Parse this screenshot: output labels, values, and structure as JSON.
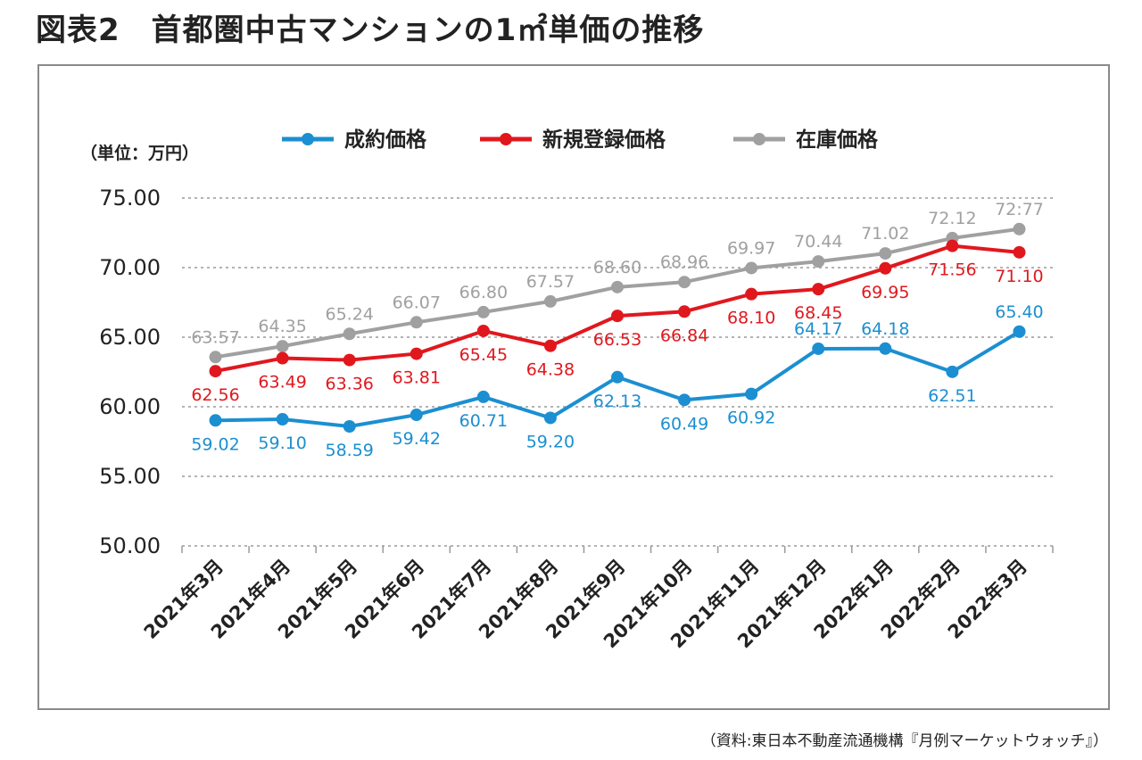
{
  "title": "図表2　首都圏中古マンションの1㎡単価の推移",
  "source": "（資料:東日本不動産流通機構『月例マーケットウォッチ』）",
  "chart_data": {
    "type": "line",
    "title": "図表2　首都圏中古マンションの1㎡単価の推移",
    "unit_label": "（単位：万円）",
    "xlabel": "",
    "ylabel": "",
    "ylim": [
      50,
      75
    ],
    "yticks": [
      "75.00",
      "70.00",
      "65.00",
      "60.00",
      "55.00",
      "50.00"
    ],
    "grid": true,
    "legend_position": "top-center",
    "categories": [
      "2021年3月",
      "2021年4月",
      "2021年5月",
      "2021年6月",
      "2021年7月",
      "2021年8月",
      "2021年9月",
      "2021年10月",
      "2021年11月",
      "2021年12月",
      "2022年1月",
      "2022年2月",
      "2022年3月"
    ],
    "series": [
      {
        "name": "成約価格",
        "color": "#1b8fd1",
        "values": [
          59.02,
          59.1,
          58.59,
          59.42,
          60.71,
          59.2,
          62.13,
          60.49,
          60.92,
          64.17,
          64.18,
          62.51,
          65.4
        ],
        "labels": [
          "59.02",
          "59.10",
          "58.59",
          "59.42",
          "60.71",
          "59.20",
          "62.13",
          "60.49",
          "60.92",
          "64.17",
          "64.18",
          "62.51",
          "65.40"
        ],
        "label_pos": [
          "below",
          "below",
          "below",
          "below",
          "below",
          "below",
          "below",
          "below",
          "below",
          "above",
          "above",
          "below",
          "above"
        ]
      },
      {
        "name": "新規登録価格",
        "color": "#e0181e",
        "values": [
          62.56,
          63.49,
          63.36,
          63.81,
          65.45,
          64.38,
          66.53,
          66.84,
          68.1,
          68.45,
          69.95,
          71.56,
          71.1
        ],
        "labels": [
          "62.56",
          "63.49",
          "63.36",
          "63.81",
          "65.45",
          "64.38",
          "66.53",
          "66.84",
          "68.10",
          "68.45",
          "69.95",
          "71.56",
          "71.10"
        ],
        "label_pos": [
          "below",
          "below",
          "below",
          "below",
          "below",
          "below",
          "below",
          "below",
          "below",
          "below",
          "below",
          "below",
          "below"
        ]
      },
      {
        "name": "在庫価格",
        "color": "#a0a0a0",
        "values": [
          63.57,
          64.35,
          65.24,
          66.07,
          66.8,
          67.57,
          68.6,
          68.96,
          69.97,
          70.44,
          71.02,
          72.12,
          72.77
        ],
        "labels": [
          "63.57",
          "64.35",
          "65.24",
          "66.07",
          "66.80",
          "67.57",
          "68.60",
          "68.96",
          "69.97",
          "70.44",
          "71.02",
          "72.12",
          "72:77"
        ],
        "label_pos": [
          "above",
          "above",
          "above",
          "above",
          "above",
          "above",
          "above",
          "above",
          "above",
          "above",
          "above",
          "above",
          "above"
        ]
      }
    ]
  }
}
